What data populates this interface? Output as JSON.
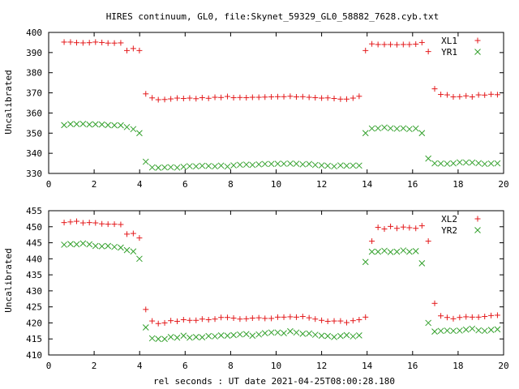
{
  "title": "HIRES continuum, GL0, file:Skynet_59329_GL0_58882_7628.cyb.txt",
  "xlabel": "rel seconds : UT date 2021-04-25T08:00:28.180",
  "colors": {
    "series_a": "#e41a1c",
    "series_b": "#33a02c",
    "frame": "#000000"
  },
  "chart_data": [
    {
      "type": "scatter",
      "ylabel": "Uncalibrated",
      "xlim": [
        0,
        20
      ],
      "ylim": [
        330,
        400
      ],
      "xticks": [
        0,
        2,
        4,
        6,
        8,
        10,
        12,
        14,
        16,
        18,
        20
      ],
      "yticks": [
        330,
        340,
        350,
        360,
        370,
        380,
        390,
        400
      ],
      "legend_position": "top-right",
      "series": [
        {
          "name": "XL1",
          "marker": "+",
          "x": [
            0.68,
            0.96,
            1.23,
            1.51,
            1.79,
            2.06,
            2.34,
            2.61,
            2.89,
            3.17,
            3.44,
            3.72,
            3.99,
            4.27,
            4.55,
            4.82,
            5.1,
            5.37,
            5.65,
            5.93,
            6.2,
            6.48,
            6.75,
            7.03,
            7.31,
            7.58,
            7.86,
            8.13,
            8.41,
            8.69,
            8.96,
            9.24,
            9.51,
            9.79,
            10.07,
            10.34,
            10.62,
            10.89,
            11.17,
            11.45,
            11.72,
            12.0,
            12.27,
            12.55,
            12.83,
            13.1,
            13.38,
            13.65,
            13.93,
            14.21,
            14.48,
            14.76,
            15.03,
            15.31,
            15.59,
            15.86,
            16.14,
            16.41,
            16.69,
            16.97,
            17.24,
            17.52,
            17.79,
            18.07,
            18.35,
            18.62,
            18.9,
            19.17,
            19.45,
            19.73
          ],
          "y": [
            395.2,
            395.2,
            394.9,
            394.8,
            394.9,
            395.2,
            395.0,
            394.7,
            394.7,
            394.8,
            391.0,
            392.0,
            391.0,
            369.5,
            367.5,
            366.6,
            366.7,
            367.0,
            367.4,
            367.2,
            367.4,
            367.1,
            367.6,
            367.3,
            367.8,
            367.7,
            368.2,
            367.6,
            367.7,
            367.6,
            367.8,
            367.8,
            367.9,
            368.0,
            368.1,
            368.1,
            368.3,
            368.0,
            368.1,
            367.8,
            367.6,
            367.4,
            367.5,
            367.2,
            366.9,
            366.9,
            367.4,
            368.3,
            391.0,
            394.3,
            394.0,
            394.0,
            394.0,
            393.9,
            394.0,
            394.0,
            394.2,
            395.0,
            390.5,
            372.0,
            369.2,
            369.0,
            368.0,
            368.1,
            368.5,
            368.0,
            369.0,
            368.9,
            369.3,
            369.1
          ]
        },
        {
          "name": "YR1",
          "marker": "x",
          "x": [
            0.68,
            0.96,
            1.23,
            1.51,
            1.79,
            2.06,
            2.34,
            2.61,
            2.89,
            3.17,
            3.44,
            3.72,
            3.99,
            4.27,
            4.55,
            4.82,
            5.1,
            5.37,
            5.65,
            5.93,
            6.2,
            6.48,
            6.75,
            7.03,
            7.31,
            7.58,
            7.86,
            8.13,
            8.41,
            8.69,
            8.96,
            9.24,
            9.51,
            9.79,
            10.07,
            10.34,
            10.62,
            10.89,
            11.17,
            11.45,
            11.72,
            12.0,
            12.27,
            12.55,
            12.83,
            13.1,
            13.38,
            13.65,
            13.93,
            14.21,
            14.48,
            14.76,
            15.03,
            15.31,
            15.59,
            15.86,
            16.14,
            16.41,
            16.69,
            16.97,
            17.24,
            17.52,
            17.79,
            18.07,
            18.35,
            18.62,
            18.9,
            19.17,
            19.45,
            19.73
          ],
          "y": [
            354.0,
            354.5,
            354.5,
            354.6,
            354.3,
            354.4,
            354.3,
            354.0,
            353.9,
            353.9,
            353.0,
            352.0,
            350.0,
            335.8,
            333.0,
            332.8,
            333.0,
            333.1,
            332.9,
            333.3,
            333.6,
            333.5,
            333.8,
            333.7,
            333.5,
            333.9,
            333.4,
            334.0,
            334.3,
            334.4,
            334.2,
            334.5,
            334.7,
            334.7,
            334.8,
            334.8,
            334.9,
            334.8,
            334.5,
            334.7,
            334.2,
            334.0,
            333.8,
            333.5,
            334.0,
            333.8,
            333.9,
            333.9,
            350.0,
            352.3,
            352.4,
            352.8,
            352.4,
            352.2,
            352.4,
            352.0,
            352.3,
            350.0,
            337.4,
            335.0,
            334.9,
            334.8,
            335.0,
            335.5,
            335.4,
            335.4,
            335.1,
            334.7,
            334.9,
            335.0
          ]
        }
      ]
    },
    {
      "type": "scatter",
      "ylabel": "Uncalibrated",
      "xlim": [
        0,
        20
      ],
      "ylim": [
        410,
        455
      ],
      "xticks": [
        0,
        2,
        4,
        6,
        8,
        10,
        12,
        14,
        16,
        18,
        20
      ],
      "yticks": [
        410,
        415,
        420,
        425,
        430,
        435,
        440,
        445,
        450,
        455
      ],
      "legend_position": "top-right",
      "series": [
        {
          "name": "XL2",
          "marker": "+",
          "x": [
            0.68,
            0.96,
            1.23,
            1.51,
            1.79,
            2.06,
            2.34,
            2.61,
            2.89,
            3.17,
            3.44,
            3.72,
            3.99,
            4.27,
            4.55,
            4.82,
            5.1,
            5.37,
            5.65,
            5.93,
            6.2,
            6.48,
            6.75,
            7.03,
            7.31,
            7.58,
            7.86,
            8.13,
            8.41,
            8.69,
            8.96,
            9.24,
            9.51,
            9.79,
            10.07,
            10.34,
            10.62,
            10.89,
            11.17,
            11.45,
            11.72,
            12.0,
            12.27,
            12.55,
            12.83,
            13.1,
            13.38,
            13.65,
            13.93,
            14.21,
            14.48,
            14.76,
            15.03,
            15.31,
            15.59,
            15.86,
            16.14,
            16.41,
            16.69,
            16.97,
            17.24,
            17.52,
            17.79,
            18.07,
            18.35,
            18.62,
            18.9,
            19.17,
            19.45,
            19.73
          ],
          "y": [
            451.3,
            451.5,
            451.7,
            451.2,
            451.3,
            451.2,
            450.9,
            450.8,
            450.8,
            450.7,
            447.7,
            447.9,
            446.5,
            424.2,
            420.6,
            419.8,
            420.0,
            420.7,
            420.5,
            421.0,
            420.8,
            420.8,
            421.2,
            421.0,
            421.2,
            421.7,
            421.7,
            421.5,
            421.2,
            421.3,
            421.5,
            421.6,
            421.4,
            421.4,
            421.8,
            421.8,
            421.9,
            421.8,
            422.0,
            421.6,
            421.2,
            420.8,
            420.5,
            420.6,
            420.6,
            420.1,
            420.7,
            421.0,
            421.8,
            445.5,
            449.8,
            449.3,
            450.1,
            449.5,
            449.9,
            449.7,
            449.5,
            450.3,
            445.5,
            426.1,
            422.2,
            421.7,
            421.3,
            421.7,
            421.9,
            421.8,
            421.8,
            422.0,
            422.3,
            422.4
          ]
        },
        {
          "name": "YR2",
          "marker": "x",
          "x": [
            0.68,
            0.96,
            1.23,
            1.51,
            1.79,
            2.06,
            2.34,
            2.61,
            2.89,
            3.17,
            3.44,
            3.72,
            3.99,
            4.27,
            4.55,
            4.82,
            5.1,
            5.37,
            5.65,
            5.93,
            6.2,
            6.48,
            6.75,
            7.03,
            7.31,
            7.58,
            7.86,
            8.13,
            8.41,
            8.69,
            8.96,
            9.24,
            9.51,
            9.79,
            10.07,
            10.34,
            10.62,
            10.89,
            11.17,
            11.45,
            11.72,
            12.0,
            12.27,
            12.55,
            12.83,
            13.1,
            13.38,
            13.65,
            13.93,
            14.21,
            14.48,
            14.76,
            15.03,
            15.31,
            15.59,
            15.86,
            16.14,
            16.41,
            16.69,
            16.97,
            17.24,
            17.52,
            17.79,
            18.07,
            18.35,
            18.62,
            18.9,
            19.17,
            19.45,
            19.73
          ],
          "y": [
            444.4,
            444.6,
            444.5,
            444.8,
            444.5,
            444.0,
            443.9,
            444.0,
            443.7,
            443.5,
            442.7,
            442.3,
            440.0,
            418.6,
            415.2,
            415.0,
            415.0,
            415.6,
            415.4,
            416.0,
            415.4,
            415.6,
            415.5,
            415.9,
            415.8,
            416.1,
            416.0,
            416.2,
            416.4,
            416.5,
            416.0,
            416.4,
            416.8,
            417.0,
            417.0,
            416.8,
            417.4,
            417.0,
            416.6,
            416.7,
            416.3,
            416.0,
            415.9,
            415.6,
            415.9,
            416.2,
            415.8,
            416.1,
            439.0,
            442.2,
            442.2,
            442.5,
            442.1,
            442.2,
            442.6,
            442.2,
            442.4,
            438.6,
            420.0,
            417.3,
            417.5,
            417.6,
            417.5,
            417.6,
            417.9,
            418.2,
            417.7,
            417.5,
            417.8,
            418.0
          ]
        }
      ]
    }
  ]
}
